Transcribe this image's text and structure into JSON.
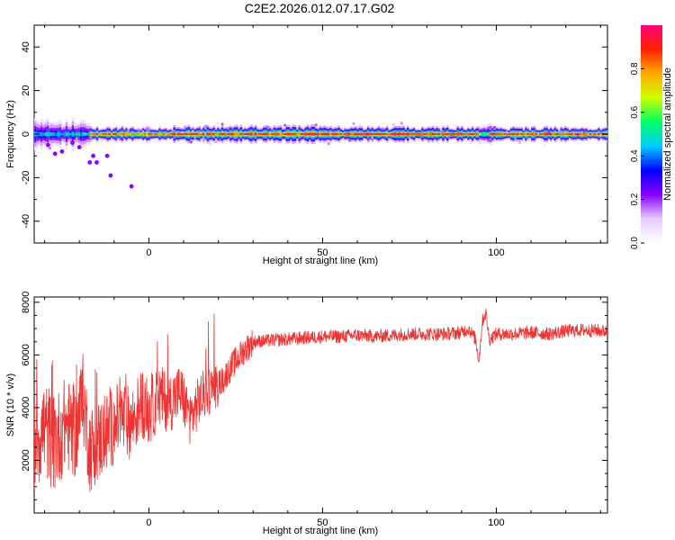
{
  "title": "C2E2.2026.012.07.17.G02",
  "colorbar": {
    "label": "Normalized spectral amplitude",
    "ticks": [
      "0.0",
      "0.2",
      "0.4",
      "0.6",
      "0.8"
    ],
    "tick_values": [
      0,
      0.2,
      0.4,
      0.6,
      0.8
    ],
    "colors": [
      "#ffffff",
      "#e8ccff",
      "#8800ff",
      "#0000ff",
      "#00ccff",
      "#00ff66",
      "#ccff00",
      "#ffaa00",
      "#ff2200",
      "#ff0077"
    ]
  },
  "chart_data": [
    {
      "type": "heatmap",
      "xlabel": "Height of straight line (km)",
      "ylabel": "Frequency (Hz)",
      "xlim": [
        -33,
        132
      ],
      "ylim": [
        -50,
        50
      ],
      "x_ticks": [
        0,
        50,
        100
      ],
      "x_tick_labels": [
        "0",
        "50",
        "100"
      ],
      "y_ticks": [
        -40,
        -20,
        0,
        20,
        40
      ],
      "y_tick_labels": [
        "-40",
        "-20",
        "0",
        "20",
        "40"
      ],
      "peak_frequency_hz": 0,
      "band_segments": [
        {
          "x0": -33,
          "x1": -17,
          "half_width_hz": 6,
          "peak": 0.45
        },
        {
          "x0": -17,
          "x1": 7,
          "half_width_hz": 3,
          "peak": 0.85
        },
        {
          "x0": 7,
          "x1": 55,
          "half_width_hz": 3.5,
          "peak": 0.9
        },
        {
          "x0": 55,
          "x1": 95,
          "half_width_hz": 3,
          "peak": 0.95
        },
        {
          "x0": 95,
          "x1": 98,
          "half_width_hz": 4,
          "peak": 0.6
        },
        {
          "x0": 98,
          "x1": 132,
          "half_width_hz": 3,
          "peak": 0.9
        }
      ],
      "scatter_points": [
        {
          "x": -29,
          "y": -5
        },
        {
          "x": -27,
          "y": -9
        },
        {
          "x": -25,
          "y": -8
        },
        {
          "x": -22,
          "y": -4
        },
        {
          "x": -20,
          "y": -6
        },
        {
          "x": -17,
          "y": -13
        },
        {
          "x": -16,
          "y": -10
        },
        {
          "x": -15,
          "y": -13
        },
        {
          "x": -12,
          "y": -10
        },
        {
          "x": -11,
          "y": -19
        },
        {
          "x": -5,
          "y": -24
        }
      ]
    },
    {
      "type": "line",
      "xlabel": "Height of straight line (km)",
      "ylabel": "SNR (10 * v/v)",
      "xlim": [
        -33,
        132
      ],
      "ylim": [
        0,
        8200
      ],
      "x_ticks": [
        0,
        50,
        100
      ],
      "x_tick_labels": [
        "0",
        "50",
        "100"
      ],
      "y_ticks": [
        2000,
        4000,
        6000,
        8000
      ],
      "y_tick_labels": [
        "2000",
        "4000",
        "6000",
        "8000"
      ],
      "series": [
        {
          "name": "SNR",
          "color": "#ee3333",
          "x": [
            -33,
            -30,
            -27,
            -24,
            -21,
            -19,
            -17,
            -14,
            -11,
            -8,
            -5,
            -2,
            0,
            3,
            6,
            9,
            12,
            15,
            18,
            21,
            24,
            27,
            30,
            35,
            40,
            45,
            50,
            55,
            60,
            65,
            70,
            75,
            80,
            85,
            90,
            92,
            94,
            95,
            96,
            97,
            98,
            100,
            105,
            110,
            115,
            120,
            125,
            132
          ],
          "y": [
            2800,
            3200,
            2600,
            3400,
            3000,
            4400,
            2400,
            2800,
            3200,
            3600,
            3400,
            4200,
            3800,
            4400,
            4200,
            4600,
            3600,
            4400,
            4700,
            5000,
            5600,
            6100,
            6500,
            6550,
            6600,
            6650,
            6700,
            6700,
            6750,
            6700,
            6750,
            6800,
            6800,
            6800,
            6850,
            7000,
            6600,
            5800,
            7300,
            7600,
            6600,
            6800,
            6800,
            6850,
            6800,
            6900,
            6950,
            6900
          ]
        }
      ]
    }
  ]
}
